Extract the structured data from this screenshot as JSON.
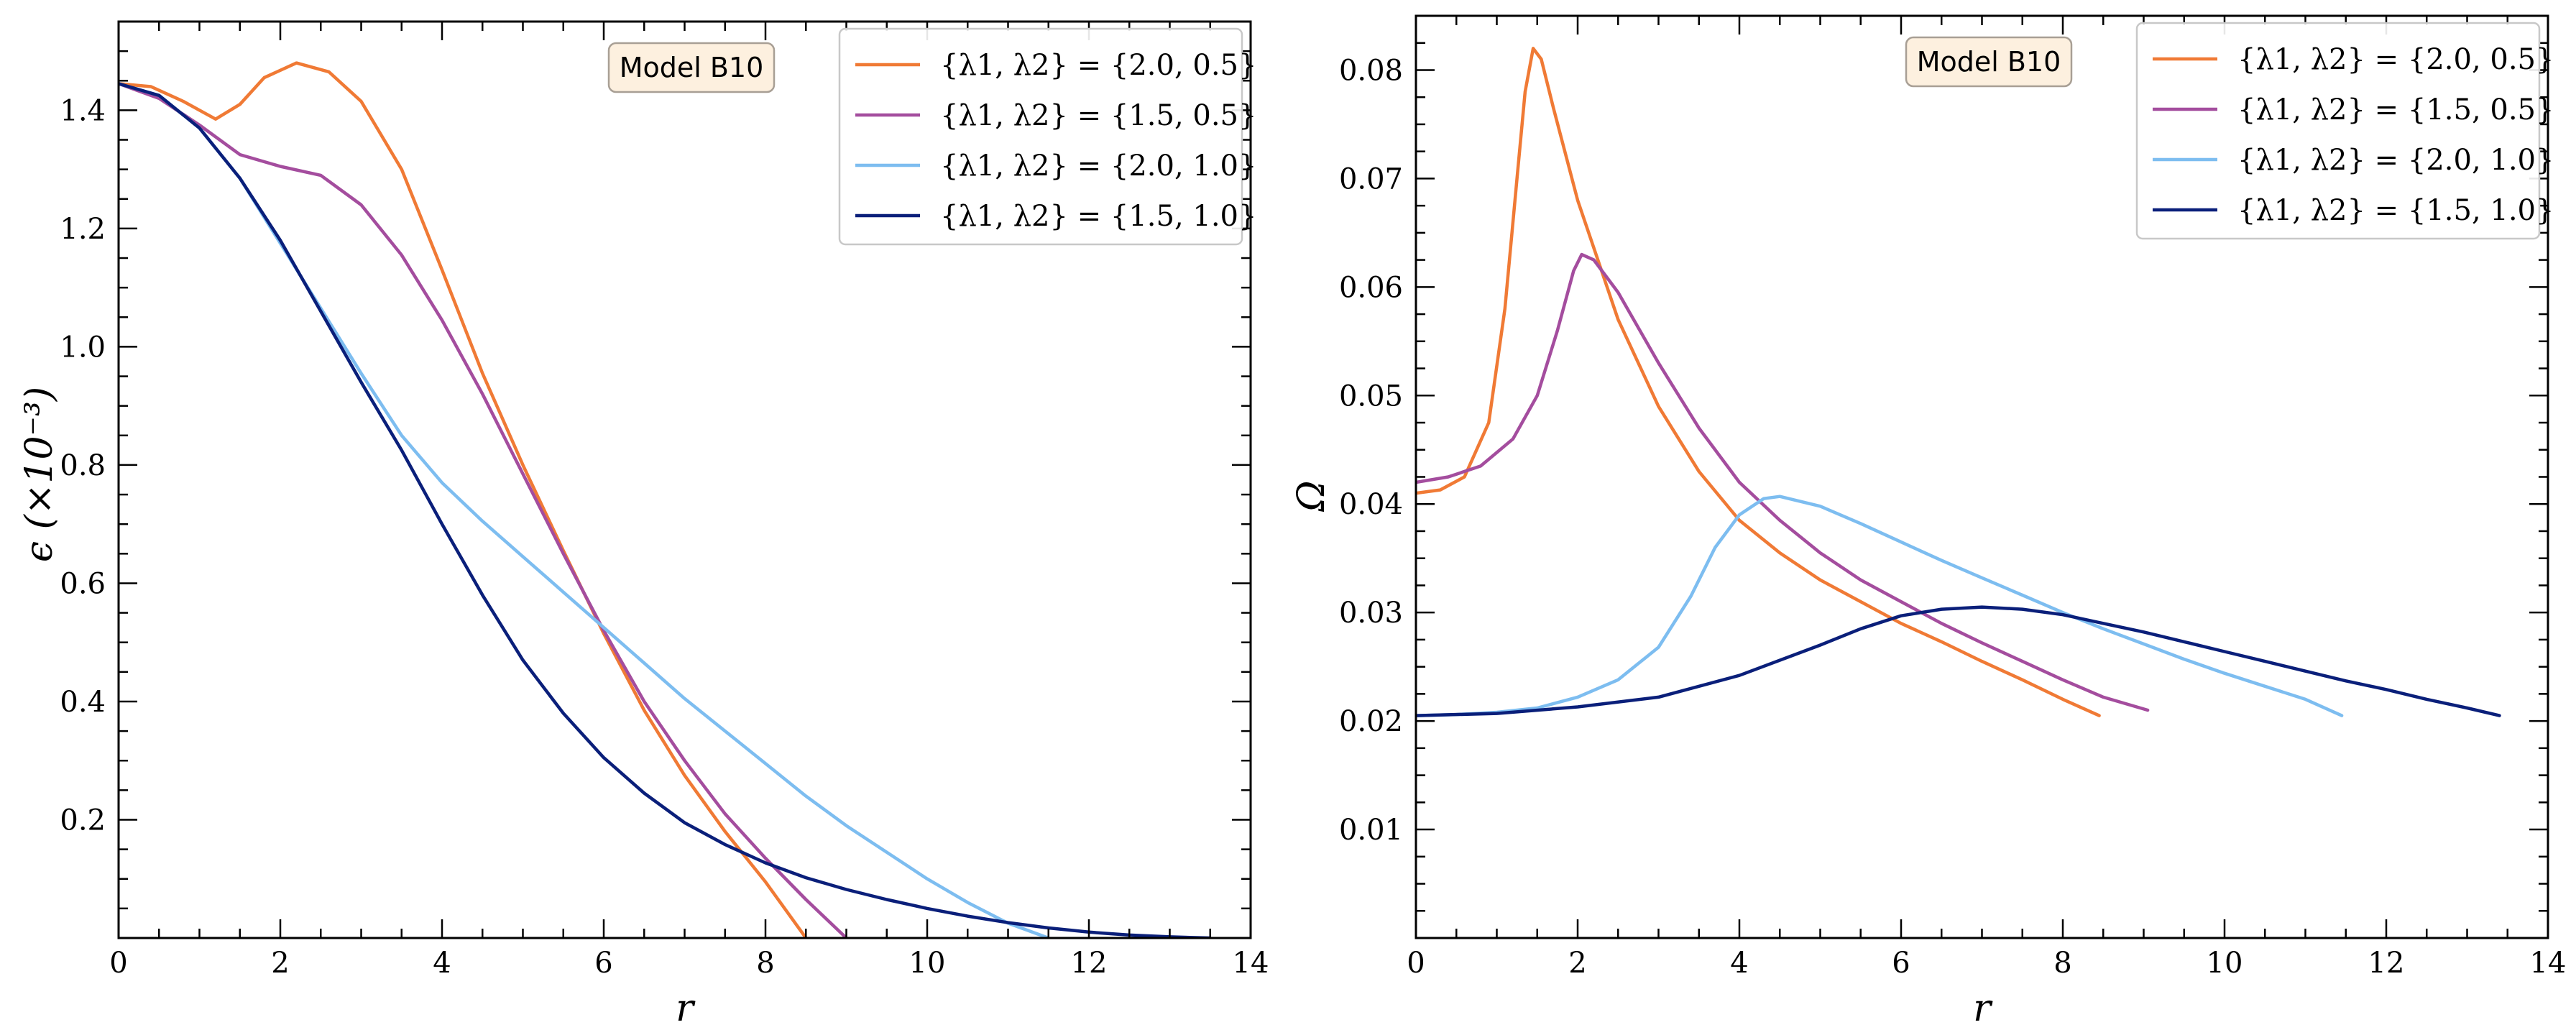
{
  "chart_data": [
    {
      "type": "line",
      "model_label": "Model B10",
      "xlabel": "r",
      "ylabel": "ϵ (×10⁻³)",
      "xlim": [
        0,
        14
      ],
      "ylim": [
        0,
        1.55
      ],
      "xticks": [
        0,
        2,
        4,
        6,
        8,
        10,
        12,
        14
      ],
      "xtick_labels": [
        "0",
        "2",
        "4",
        "6",
        "8",
        "10",
        "12",
        "14"
      ],
      "yticks": [
        0.2,
        0.4,
        0.6,
        0.8,
        1.0,
        1.2,
        1.4
      ],
      "ytick_labels": [
        "0.2",
        "0.4",
        "0.6",
        "0.8",
        "1.0",
        "1.2",
        "1.4"
      ],
      "legend_position": "top-right",
      "series": [
        {
          "name": "{λ1, λ2} = {2.0, 0.5}",
          "color": "#F07A35",
          "points": [
            [
              0,
              1.445
            ],
            [
              0.4,
              1.44
            ],
            [
              0.8,
              1.415
            ],
            [
              1.2,
              1.385
            ],
            [
              1.5,
              1.41
            ],
            [
              1.8,
              1.455
            ],
            [
              2.2,
              1.48
            ],
            [
              2.6,
              1.465
            ],
            [
              3.0,
              1.415
            ],
            [
              3.5,
              1.3
            ],
            [
              4.0,
              1.13
            ],
            [
              4.5,
              0.955
            ],
            [
              5.0,
              0.8
            ],
            [
              5.5,
              0.655
            ],
            [
              6.0,
              0.515
            ],
            [
              6.5,
              0.385
            ],
            [
              7.0,
              0.275
            ],
            [
              7.5,
              0.18
            ],
            [
              8.0,
              0.095
            ],
            [
              8.5,
              0.0
            ]
          ]
        },
        {
          "name": "{λ1, λ2} = {1.5, 0.5}",
          "color": "#A44D9E",
          "points": [
            [
              0,
              1.445
            ],
            [
              0.5,
              1.42
            ],
            [
              1.0,
              1.375
            ],
            [
              1.5,
              1.325
            ],
            [
              2.0,
              1.305
            ],
            [
              2.5,
              1.29
            ],
            [
              3.0,
              1.24
            ],
            [
              3.5,
              1.155
            ],
            [
              4.0,
              1.045
            ],
            [
              4.5,
              0.92
            ],
            [
              5.0,
              0.785
            ],
            [
              5.5,
              0.65
            ],
            [
              6.0,
              0.52
            ],
            [
              6.5,
              0.4
            ],
            [
              7.0,
              0.3
            ],
            [
              7.5,
              0.21
            ],
            [
              8.0,
              0.135
            ],
            [
              8.5,
              0.065
            ],
            [
              9.0,
              0.0
            ]
          ]
        },
        {
          "name": "{λ1, λ2} = {2.0, 1.0}",
          "color": "#7DBDF0",
          "points": [
            [
              0,
              1.445
            ],
            [
              0.5,
              1.425
            ],
            [
              1.0,
              1.37
            ],
            [
              1.5,
              1.285
            ],
            [
              2.0,
              1.175
            ],
            [
              2.5,
              1.065
            ],
            [
              3.0,
              0.955
            ],
            [
              3.5,
              0.85
            ],
            [
              4.0,
              0.77
            ],
            [
              4.5,
              0.705
            ],
            [
              5.0,
              0.645
            ],
            [
              5.5,
              0.585
            ],
            [
              6.0,
              0.525
            ],
            [
              6.5,
              0.465
            ],
            [
              7.0,
              0.405
            ],
            [
              7.5,
              0.35
            ],
            [
              8.0,
              0.295
            ],
            [
              8.5,
              0.24
            ],
            [
              9.0,
              0.19
            ],
            [
              9.5,
              0.145
            ],
            [
              10.0,
              0.1
            ],
            [
              10.5,
              0.06
            ],
            [
              11.0,
              0.025
            ],
            [
              11.5,
              0.0
            ]
          ]
        },
        {
          "name": "{λ1, λ2} = {1.5, 1.0}",
          "color": "#0A1F7A",
          "points": [
            [
              0,
              1.445
            ],
            [
              0.5,
              1.425
            ],
            [
              1.0,
              1.37
            ],
            [
              1.5,
              1.285
            ],
            [
              2.0,
              1.18
            ],
            [
              2.5,
              1.06
            ],
            [
              3.0,
              0.94
            ],
            [
              3.5,
              0.825
            ],
            [
              4.0,
              0.7
            ],
            [
              4.5,
              0.58
            ],
            [
              5.0,
              0.47
            ],
            [
              5.5,
              0.38
            ],
            [
              6.0,
              0.305
            ],
            [
              6.5,
              0.245
            ],
            [
              7.0,
              0.195
            ],
            [
              7.5,
              0.158
            ],
            [
              8.0,
              0.127
            ],
            [
              8.5,
              0.102
            ],
            [
              9.0,
              0.082
            ],
            [
              9.5,
              0.065
            ],
            [
              10.0,
              0.05
            ],
            [
              10.5,
              0.037
            ],
            [
              11.0,
              0.026
            ],
            [
              11.5,
              0.017
            ],
            [
              12.0,
              0.01
            ],
            [
              12.5,
              0.005
            ],
            [
              13.0,
              0.002
            ],
            [
              13.5,
              0.0
            ]
          ]
        }
      ]
    },
    {
      "type": "line",
      "model_label": "Model B10",
      "xlabel": "r",
      "ylabel": "Ω",
      "xlim": [
        0,
        14
      ],
      "ylim": [
        0,
        0.085
      ],
      "xticks": [
        0,
        2,
        4,
        6,
        8,
        10,
        12,
        14
      ],
      "xtick_labels": [
        "0",
        "2",
        "4",
        "6",
        "8",
        "10",
        "12",
        "14"
      ],
      "yticks": [
        0.01,
        0.02,
        0.03,
        0.04,
        0.05,
        0.06,
        0.07,
        0.08
      ],
      "ytick_labels": [
        "0.01",
        "0.02",
        "0.03",
        "0.04",
        "0.05",
        "0.06",
        "0.07",
        "0.08"
      ],
      "legend_position": "top-right",
      "series": [
        {
          "name": "{λ1, λ2} = {2.0, 0.5}",
          "color": "#F07A35",
          "points": [
            [
              0,
              0.041
            ],
            [
              0.3,
              0.0413
            ],
            [
              0.6,
              0.0425
            ],
            [
              0.9,
              0.0475
            ],
            [
              1.1,
              0.058
            ],
            [
              1.25,
              0.07
            ],
            [
              1.35,
              0.078
            ],
            [
              1.45,
              0.082
            ],
            [
              1.55,
              0.081
            ],
            [
              1.7,
              0.0765
            ],
            [
              2.0,
              0.068
            ],
            [
              2.5,
              0.057
            ],
            [
              3.0,
              0.049
            ],
            [
              3.5,
              0.043
            ],
            [
              4.0,
              0.0385
            ],
            [
              4.5,
              0.0355
            ],
            [
              5.0,
              0.033
            ],
            [
              5.5,
              0.031
            ],
            [
              6.0,
              0.029
            ],
            [
              6.5,
              0.0273
            ],
            [
              7.0,
              0.0255
            ],
            [
              7.5,
              0.0238
            ],
            [
              8.0,
              0.022
            ],
            [
              8.45,
              0.0205
            ]
          ]
        },
        {
          "name": "{λ1, λ2} = {1.5, 0.5}",
          "color": "#A44D9E",
          "points": [
            [
              0,
              0.042
            ],
            [
              0.4,
              0.0425
            ],
            [
              0.8,
              0.0435
            ],
            [
              1.2,
              0.046
            ],
            [
              1.5,
              0.05
            ],
            [
              1.75,
              0.056
            ],
            [
              1.95,
              0.0615
            ],
            [
              2.05,
              0.063
            ],
            [
              2.2,
              0.0625
            ],
            [
              2.5,
              0.0595
            ],
            [
              3.0,
              0.053
            ],
            [
              3.5,
              0.047
            ],
            [
              4.0,
              0.042
            ],
            [
              4.5,
              0.0385
            ],
            [
              5.0,
              0.0355
            ],
            [
              5.5,
              0.033
            ],
            [
              6.0,
              0.031
            ],
            [
              6.5,
              0.029
            ],
            [
              7.0,
              0.0272
            ],
            [
              7.5,
              0.0255
            ],
            [
              8.0,
              0.0238
            ],
            [
              8.5,
              0.0222
            ],
            [
              9.05,
              0.021
            ]
          ]
        },
        {
          "name": "{λ1, λ2} = {2.0, 1.0}",
          "color": "#7DBDF0",
          "points": [
            [
              0,
              0.0205
            ],
            [
              0.5,
              0.0206
            ],
            [
              1.0,
              0.0208
            ],
            [
              1.5,
              0.0212
            ],
            [
              2.0,
              0.0222
            ],
            [
              2.5,
              0.0238
            ],
            [
              3.0,
              0.0268
            ],
            [
              3.4,
              0.0315
            ],
            [
              3.7,
              0.036
            ],
            [
              4.0,
              0.039
            ],
            [
              4.3,
              0.0405
            ],
            [
              4.5,
              0.0407
            ],
            [
              5.0,
              0.0398
            ],
            [
              5.5,
              0.0382
            ],
            [
              6.0,
              0.0365
            ],
            [
              6.5,
              0.0348
            ],
            [
              7.0,
              0.0332
            ],
            [
              7.5,
              0.0316
            ],
            [
              8.0,
              0.03
            ],
            [
              8.5,
              0.0285
            ],
            [
              9.0,
              0.0271
            ],
            [
              9.5,
              0.0257
            ],
            [
              10.0,
              0.0244
            ],
            [
              10.5,
              0.0232
            ],
            [
              11.0,
              0.022
            ],
            [
              11.45,
              0.0205
            ]
          ]
        },
        {
          "name": "{λ1, λ2} = {1.5, 1.0}",
          "color": "#0A1F7A",
          "points": [
            [
              0,
              0.0205
            ],
            [
              1.0,
              0.0207
            ],
            [
              2.0,
              0.0213
            ],
            [
              3.0,
              0.0222
            ],
            [
              4.0,
              0.0242
            ],
            [
              5.0,
              0.027
            ],
            [
              5.5,
              0.0285
            ],
            [
              6.0,
              0.0297
            ],
            [
              6.5,
              0.0303
            ],
            [
              7.0,
              0.0305
            ],
            [
              7.5,
              0.0303
            ],
            [
              8.0,
              0.0298
            ],
            [
              8.5,
              0.029
            ],
            [
              9.0,
              0.0282
            ],
            [
              9.5,
              0.0273
            ],
            [
              10.0,
              0.0264
            ],
            [
              10.5,
              0.0255
            ],
            [
              11.0,
              0.0246
            ],
            [
              11.5,
              0.0237
            ],
            [
              12.0,
              0.0229
            ],
            [
              12.5,
              0.022
            ],
            [
              13.0,
              0.0212
            ],
            [
              13.4,
              0.0205
            ]
          ]
        }
      ]
    }
  ]
}
